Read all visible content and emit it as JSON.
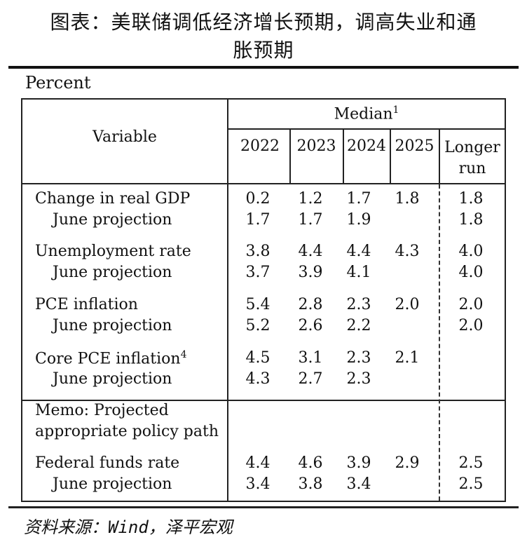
{
  "title_line1": "图表：美联储调低经济增长预期，调高失业和通",
  "title_line2": "胀预期",
  "unit": "Percent",
  "header": {
    "variable": "Variable",
    "median": "Median",
    "median_note": "1",
    "years": [
      "2022",
      "2023",
      "2024",
      "2025"
    ],
    "longer_run_line1": "Longer",
    "longer_run_line2": "run"
  },
  "rows": [
    {
      "label": "Change in real GDP",
      "note": "",
      "values": [
        "0.2",
        "1.2",
        "1.7",
        "1.8"
      ],
      "longer": "1.8"
    },
    {
      "label": "June projection",
      "note": "",
      "values": [
        "1.7",
        "1.7",
        "1.9",
        ""
      ],
      "longer": "1.8"
    },
    {
      "label": "Unemployment rate",
      "note": "",
      "values": [
        "3.8",
        "4.4",
        "4.4",
        "4.3"
      ],
      "longer": "4.0"
    },
    {
      "label": "June projection",
      "note": "",
      "values": [
        "3.7",
        "3.9",
        "4.1",
        ""
      ],
      "longer": "4.0"
    },
    {
      "label": "PCE inflation",
      "note": "",
      "values": [
        "5.4",
        "2.8",
        "2.3",
        "2.0"
      ],
      "longer": "2.0"
    },
    {
      "label": "June projection",
      "note": "",
      "values": [
        "5.2",
        "2.6",
        "2.2",
        ""
      ],
      "longer": "2.0"
    },
    {
      "label": "Core PCE inflation",
      "note": "4",
      "values": [
        "4.5",
        "3.1",
        "2.3",
        "2.1"
      ],
      "longer": ""
    },
    {
      "label": "June projection",
      "note": "",
      "values": [
        "4.3",
        "2.7",
        "2.3",
        ""
      ],
      "longer": ""
    }
  ],
  "memo_line1": "Memo: Projected",
  "memo_line2": "appropriate policy path",
  "memo_rows": [
    {
      "label": "Federal funds rate",
      "values": [
        "4.4",
        "4.6",
        "3.9",
        "2.9"
      ],
      "longer": "2.5"
    },
    {
      "label": "June projection",
      "values": [
        "3.4",
        "3.8",
        "3.4",
        ""
      ],
      "longer": "2.5"
    }
  ],
  "source": "资料来源：Wind，泽平宏观"
}
